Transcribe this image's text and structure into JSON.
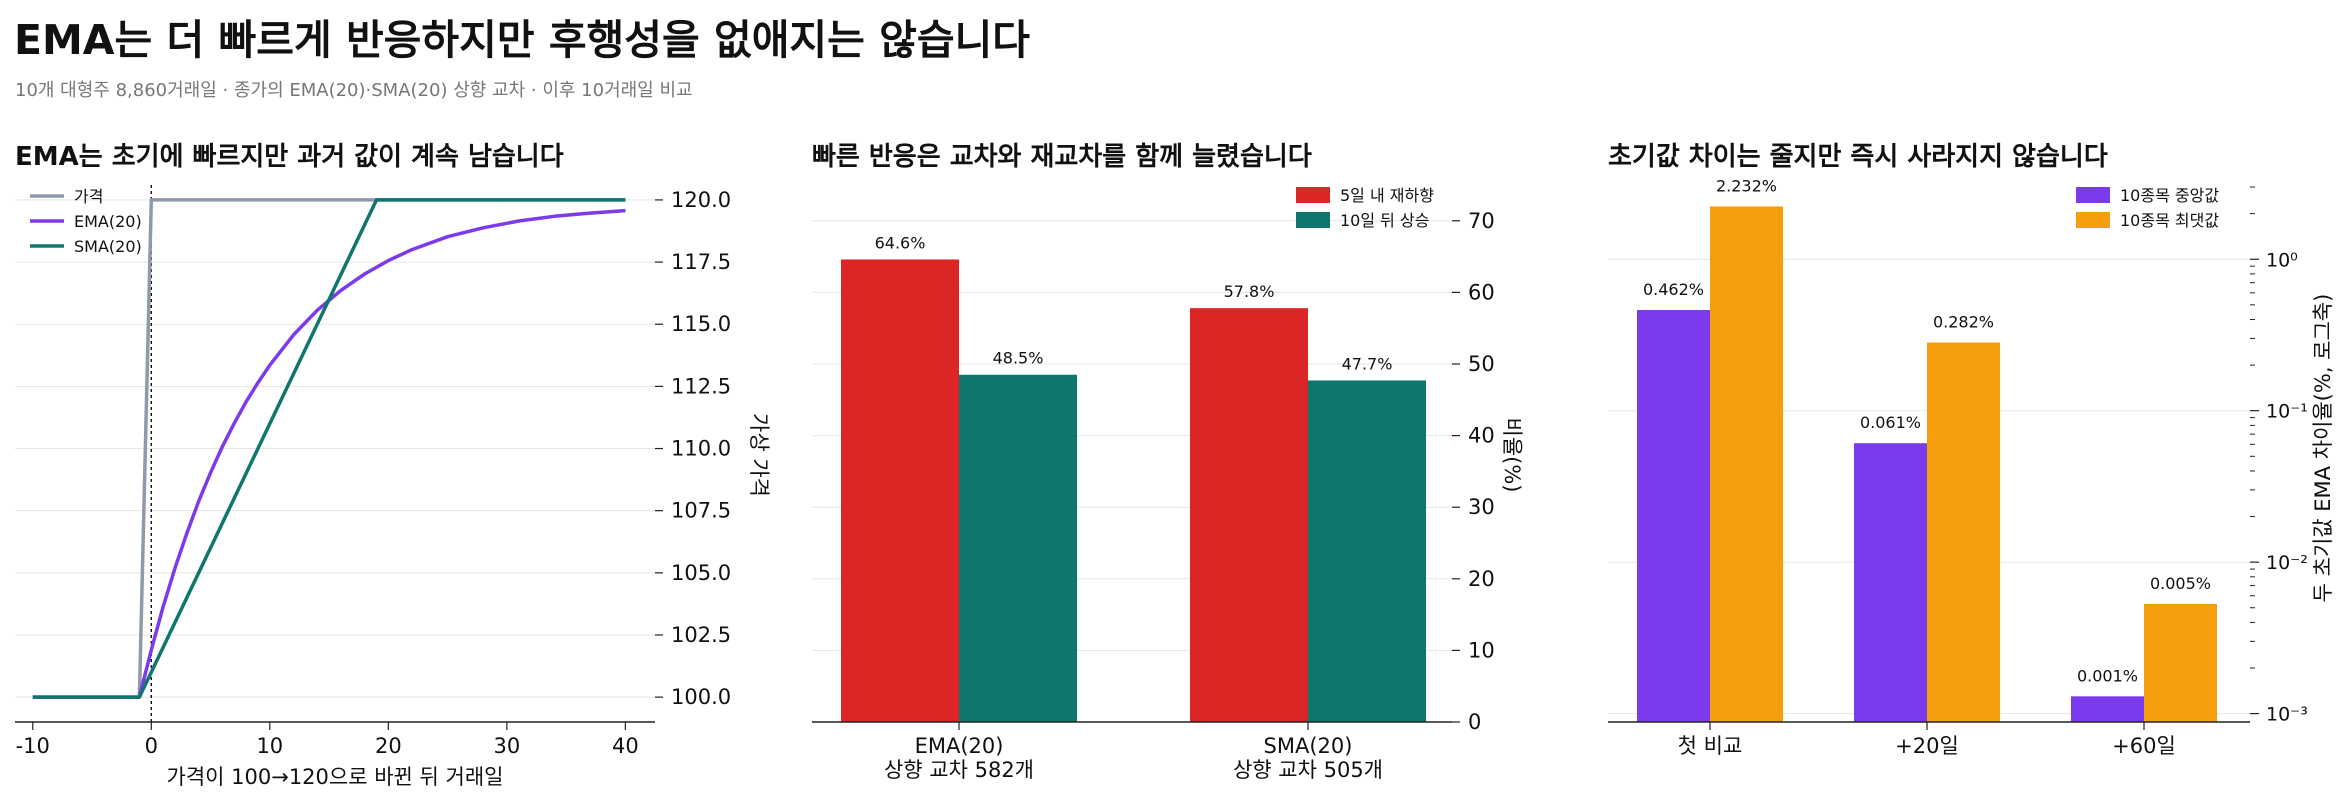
{
  "header": {
    "title": "EMA는 더 빠르게 반응하지만 후행성을 없애지는 않습니다",
    "subtitle": "10개 대형주 8,860거래일 · 종가의 EMA(20)·SMA(20) 상향 교차 · 이후 10거래일 비교"
  },
  "colors": {
    "price": "#8e9aab",
    "ema": "#7c3aed",
    "sma": "#0f766e",
    "red": "#dc2626",
    "teal": "#0f766e",
    "purple": "#7c3aed",
    "orange": "#f59e0b",
    "grid": "#e5e5e5",
    "axis": "#222222"
  },
  "chart_data": [
    {
      "type": "line",
      "title": "EMA는 초기에 빠르지만 과거 값이 계속 남습니다",
      "xlabel": "가격이 100→120으로 바뀐 뒤 거래일",
      "ylabel": "가상 가격",
      "xlim": [
        -11.5,
        42.5
      ],
      "ylim": [
        99.0,
        120.6
      ],
      "x_ticks": [
        -10,
        0,
        10,
        20,
        30,
        40
      ],
      "x_tick_labels": [
        "-10",
        "0",
        "10",
        "20",
        "30",
        "40"
      ],
      "y_ticks": [
        100.0,
        102.5,
        105.0,
        107.5,
        110.0,
        112.5,
        115.0,
        117.5,
        120.0
      ],
      "y_tick_labels": [
        "100.0",
        "102.5",
        "105.0",
        "107.5",
        "110.0",
        "112.5",
        "115.0",
        "117.5",
        "120.0"
      ],
      "y_axis_side": "right",
      "grid": "horizontal",
      "legend": "top-left",
      "vline_x": 0,
      "series": [
        {
          "name": "가격",
          "points": [
            [
              -10,
              100
            ],
            [
              -1,
              100
            ],
            [
              0,
              120
            ],
            [
              40,
              120
            ]
          ]
        },
        {
          "name": "EMA(20)",
          "points": [
            [
              -10,
              100
            ],
            [
              -1,
              100
            ],
            [
              0,
              101.9
            ],
            [
              1,
              103.63
            ],
            [
              2,
              105.19
            ],
            [
              3,
              106.6
            ],
            [
              4,
              107.88
            ],
            [
              5,
              109.03
            ],
            [
              6,
              110.08
            ],
            [
              7,
              111.02
            ],
            [
              8,
              111.88
            ],
            [
              9,
              112.65
            ],
            [
              10,
              113.35
            ],
            [
              12,
              114.57
            ],
            [
              14,
              115.56
            ],
            [
              16,
              116.36
            ],
            [
              18,
              117.02
            ],
            [
              20,
              117.56
            ],
            [
              22,
              118.0
            ],
            [
              25,
              118.52
            ],
            [
              28,
              118.88
            ],
            [
              31,
              119.15
            ],
            [
              34,
              119.34
            ],
            [
              37,
              119.47
            ],
            [
              40,
              119.57
            ]
          ]
        },
        {
          "name": "SMA(20)",
          "points": [
            [
              -10,
              100
            ],
            [
              -1,
              100
            ],
            [
              19,
              120
            ],
            [
              40,
              120
            ]
          ]
        }
      ]
    },
    {
      "type": "bar",
      "title": "빠른 반응은 교차와 재교차를 함께 늘렸습니다",
      "categories": [
        "EMA(20)\n상향 교차 582개",
        "SMA(20)\n상향 교차 505개"
      ],
      "ylabel": "비율(%)",
      "ylim": [
        0,
        75
      ],
      "y_ticks": [
        0,
        10,
        20,
        30,
        40,
        50,
        60,
        70
      ],
      "y_tick_labels": [
        "0",
        "10",
        "20",
        "30",
        "40",
        "50",
        "60",
        "70"
      ],
      "y_axis_side": "right",
      "grid": "horizontal",
      "legend": "top-right",
      "series": [
        {
          "name": "5일 내 재하향",
          "values": [
            64.6,
            57.8
          ],
          "labels": [
            "64.6%",
            "57.8%"
          ]
        },
        {
          "name": "10일 뒤 상승",
          "values": [
            48.5,
            47.7
          ],
          "labels": [
            "48.5%",
            "47.7%"
          ]
        }
      ]
    },
    {
      "type": "bar",
      "title": "초기값 차이는 줄지만 즉시 사라지지 않습니다",
      "categories": [
        "첫 비교",
        "+20일",
        "+60일"
      ],
      "ylabel": "두 초기값 EMA 차이율(%, 로그축)",
      "y_scale": "log",
      "ylim": [
        0.00088,
        3.6
      ],
      "y_ticks": [
        1,
        0.1,
        0.01,
        0.001
      ],
      "y_tick_labels": [
        "10⁰",
        "10⁻¹",
        "10⁻²",
        "10⁻³"
      ],
      "y_axis_side": "right",
      "grid": "horizontal",
      "legend": "top-right",
      "series": [
        {
          "name": "10종목 중앙값",
          "values": [
            0.462,
            0.061,
            0.0013
          ],
          "labels": [
            "0.462%",
            "0.061%",
            "0.001%"
          ]
        },
        {
          "name": "10종목 최댓값",
          "values": [
            2.232,
            0.282,
            0.0053
          ],
          "labels": [
            "2.232%",
            "0.282%",
            "0.005%"
          ]
        }
      ]
    }
  ]
}
